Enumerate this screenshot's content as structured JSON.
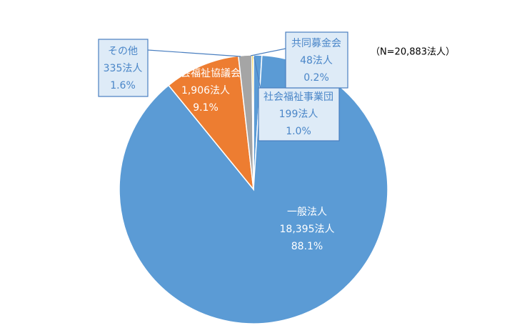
{
  "chart_data": {
    "type": "pie",
    "annotation": "（N=20,883法人）",
    "categories": [
      "社会福祉事業団",
      "一般法人",
      "社会福祉協議会",
      "その他",
      "共同募金会"
    ],
    "values": [
      1.0,
      88.1,
      9.1,
      1.6,
      0.2
    ],
    "value_labels": [
      "1.0%",
      "88.1%",
      "9.1%",
      "1.6%",
      "0.2%"
    ],
    "counts": [
      199,
      18395,
      1906,
      335,
      48
    ],
    "count_labels": [
      "199法人",
      "18,395法人",
      "1,906法人",
      "335法人",
      "48法人"
    ],
    "colors": [
      "#5b9bd5",
      "#5b9bd5",
      "#ed7d31",
      "#a5a5a5",
      "#ffc000"
    ]
  }
}
